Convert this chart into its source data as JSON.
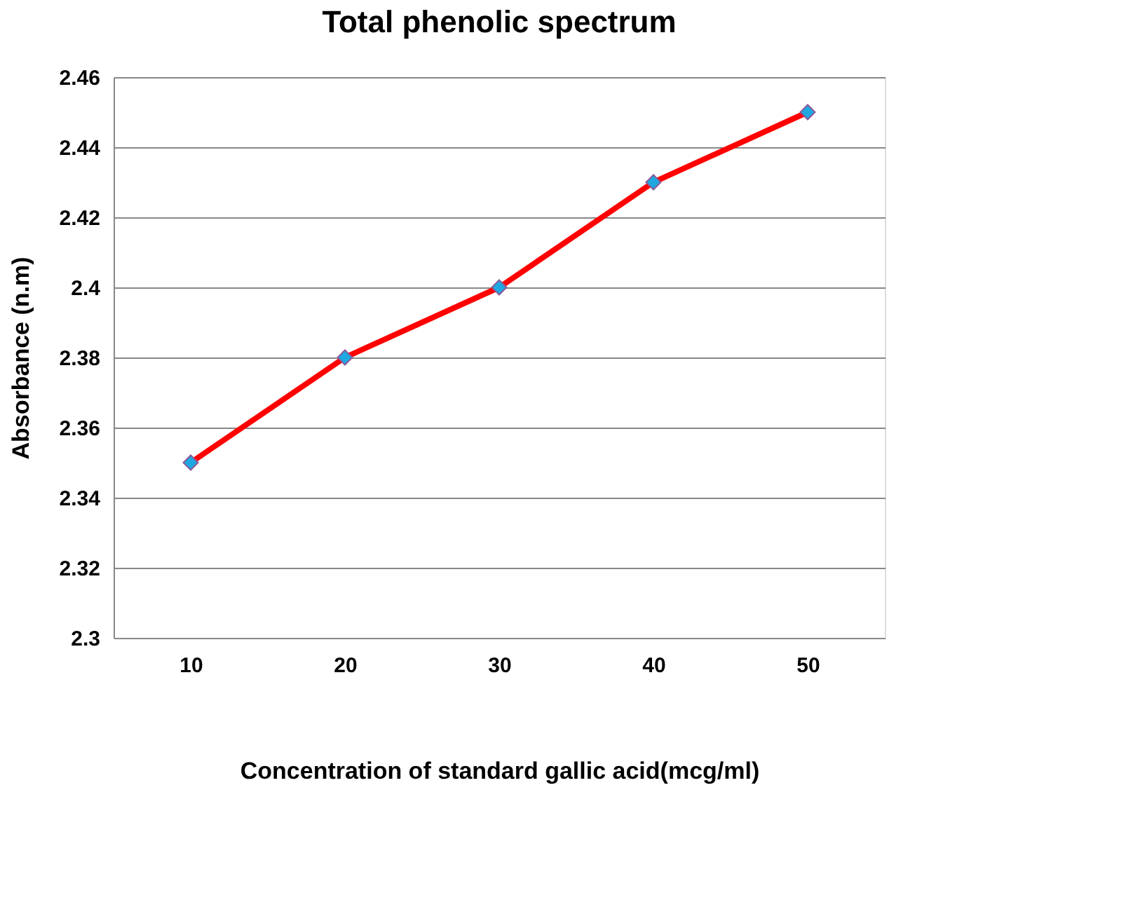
{
  "chart_data": {
    "type": "line",
    "title": "Total phenolic spectrum",
    "xlabel": "Concentration of standard gallic acid(mcg/ml)",
    "ylabel": "Absorbance (n.m)",
    "categories": [
      "10",
      "20",
      "30",
      "40",
      "50"
    ],
    "series": [
      {
        "color": "#ff0000",
        "colors": [
          "#1fa8e0",
          "#1fa8e0",
          "#1fa8e0",
          "#1fa8e0",
          "#1fa8e0"
        ],
        "values": [
          2.35,
          2.38,
          2.4,
          2.43,
          2.45
        ]
      }
    ],
    "ylim": [
      2.3,
      2.46
    ],
    "yticks": [
      2.3,
      2.32,
      2.34,
      2.36,
      2.38,
      2.4,
      2.42,
      2.44,
      2.46
    ],
    "grid": "y",
    "marker": "diamond",
    "line_style": "solid"
  }
}
